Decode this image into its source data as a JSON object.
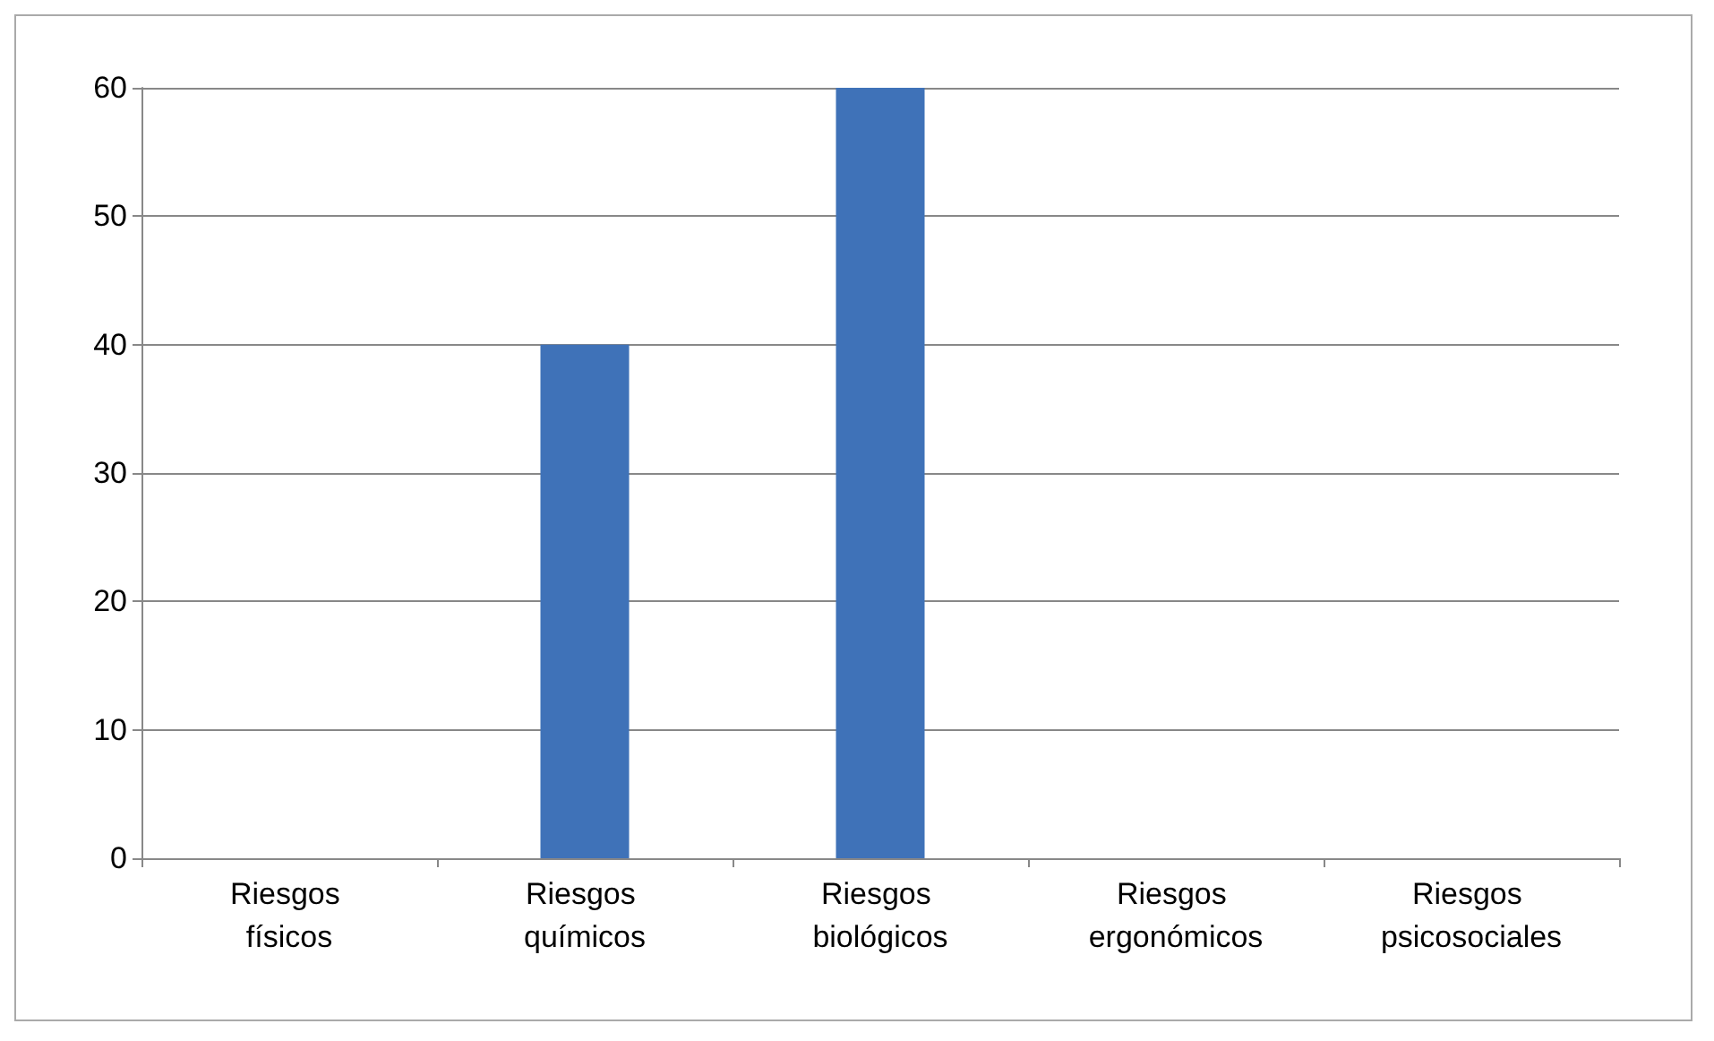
{
  "chart_data": {
    "type": "bar",
    "categories": [
      "Riesgos físicos",
      "Riesgos químicos",
      "Riesgos biológicos",
      "Riesgos ergonómicos",
      "Riesgos psicosociales"
    ],
    "values": [
      0,
      40,
      60,
      0,
      0
    ],
    "color": "#3f72b8",
    "ylim": [
      0,
      60
    ],
    "yticks": [
      0,
      10,
      20,
      30,
      40,
      50,
      60
    ],
    "grid": "y"
  }
}
